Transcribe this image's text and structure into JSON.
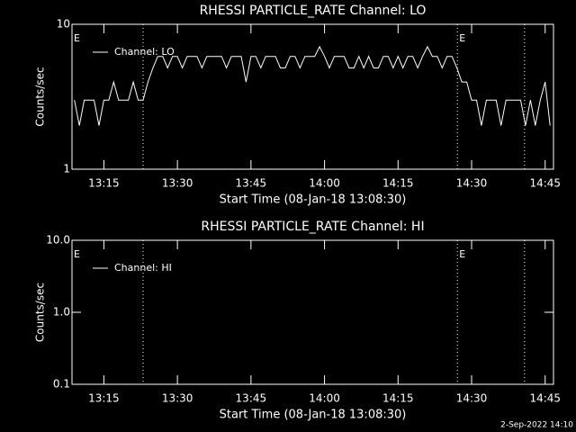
{
  "chart_data": [
    {
      "type": "line",
      "title": "RHESSI PARTICLE_RATE Channel: LO",
      "xlabel": "Start Time (08-Jan-18 13:08:30)",
      "ylabel": "Counts/sec",
      "log_y": true,
      "ylim": [
        1,
        10
      ],
      "yticks": [
        1,
        10
      ],
      "xlim": [
        788.5,
        886.7
      ],
      "xticks": [
        {
          "value": 795,
          "label": "13:15"
        },
        {
          "value": 810,
          "label": "13:30"
        },
        {
          "value": 825,
          "label": "13:45"
        },
        {
          "value": 840,
          "label": "14:00"
        },
        {
          "value": 855,
          "label": "14:15"
        },
        {
          "value": 870,
          "label": "14:30"
        },
        {
          "value": 885,
          "label": "14:45"
        }
      ],
      "vlines": [
        803.0,
        867.1,
        880.8
      ],
      "annotations": [
        {
          "text": "E",
          "x": 788.5
        },
        {
          "text": "E",
          "x": 867.1
        }
      ],
      "x": [
        789,
        790,
        791,
        792,
        793,
        794,
        795,
        796,
        797,
        798,
        799,
        800,
        801,
        802,
        803,
        804,
        805,
        806,
        807,
        808,
        809,
        810,
        811,
        812,
        813,
        814,
        815,
        816,
        817,
        818,
        819,
        820,
        821,
        822,
        823,
        824,
        825,
        826,
        827,
        828,
        829,
        830,
        831,
        832,
        833,
        834,
        835,
        836,
        837,
        838,
        839,
        840,
        841,
        842,
        843,
        844,
        845,
        846,
        847,
        848,
        849,
        850,
        851,
        852,
        853,
        854,
        855,
        856,
        857,
        858,
        859,
        860,
        861,
        862,
        863,
        864,
        865,
        866,
        867,
        868,
        869,
        870,
        871,
        872,
        873,
        874,
        875,
        876,
        877,
        878,
        879,
        880,
        881,
        882,
        883,
        884,
        885,
        886
      ],
      "series": [
        {
          "name": "Channel: LO",
          "color": "#ffffff",
          "values": [
            3,
            2,
            3,
            3,
            3,
            2,
            3,
            3,
            4,
            3,
            3,
            3,
            4,
            3,
            3,
            4,
            5,
            6,
            6,
            5,
            6,
            6,
            5,
            6,
            6,
            6,
            5,
            6,
            6,
            6,
            6,
            5,
            6,
            6,
            6,
            4,
            6,
            6,
            5,
            6,
            6,
            6,
            5,
            5,
            6,
            6,
            5,
            6,
            6,
            6,
            7,
            6,
            5,
            6,
            6,
            6,
            5,
            5,
            6,
            5,
            6,
            5,
            5,
            6,
            6,
            5,
            6,
            5,
            6,
            6,
            5,
            6,
            7,
            6,
            6,
            5,
            6,
            6,
            5,
            4,
            4,
            3,
            3,
            2,
            3,
            3,
            3,
            2,
            3,
            3,
            3,
            3,
            2,
            3,
            2,
            3,
            4,
            2
          ]
        }
      ]
    },
    {
      "type": "line",
      "title": "RHESSI PARTICLE_RATE Channel: HI",
      "xlabel": "Start Time (08-Jan-18 13:08:30)",
      "ylabel": "Counts/sec",
      "log_y": true,
      "ylim": [
        0.1,
        10
      ],
      "yticks": [
        0.1,
        {
          "value": 1,
          "label": "1.0"
        },
        {
          "value": 10,
          "label": "10.0"
        }
      ],
      "xlim": [
        788.5,
        886.7
      ],
      "xticks": [
        {
          "value": 795,
          "label": "13:15"
        },
        {
          "value": 810,
          "label": "13:30"
        },
        {
          "value": 825,
          "label": "13:45"
        },
        {
          "value": 840,
          "label": "14:00"
        },
        {
          "value": 855,
          "label": "14:15"
        },
        {
          "value": 870,
          "label": "14:30"
        },
        {
          "value": 885,
          "label": "14:45"
        }
      ],
      "vlines": [
        803.0,
        867.1,
        880.8
      ],
      "annotations": [
        {
          "text": "E",
          "x": 788.5
        },
        {
          "text": "E",
          "x": 867.1
        }
      ],
      "x": [],
      "series": [
        {
          "name": "Channel: HI",
          "color": "#ffffff",
          "values": []
        }
      ]
    }
  ],
  "footer": "2-Sep-2022 14:10"
}
